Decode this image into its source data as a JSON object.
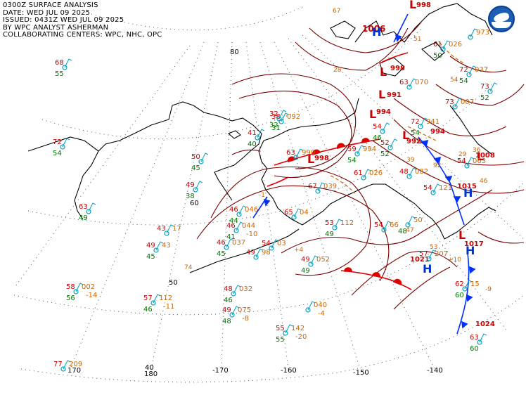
{
  "header": {
    "line1": "0300Z SURFACE ANALYSIS",
    "line2": "DATE: WED JUL 09 2025",
    "line3": "ISSUED: 0431Z WED JUL 09 2025",
    "line4": "BY WPC ANALYST ASHERMAN",
    "line5": "COLLABORATING CENTERS: WPC, NHC, OPC"
  },
  "logo": {
    "icon": "noaa-logo-icon"
  },
  "colors": {
    "isobar": "#7a0000",
    "coast": "#000000",
    "grid": "#555555",
    "warm_front": "#e00000",
    "cold_front": "#0030ff",
    "low": "#cc0000",
    "high": "#0033cc",
    "temperature": "#cc0000",
    "dewpoint": "#007700",
    "pressure": "#cc6600",
    "station": "#00a0c0",
    "trough": "#cc6600"
  },
  "grid_labels": {
    "lon": [
      "170",
      "180",
      "-170",
      "-160",
      "-150",
      "-140"
    ],
    "lat": [
      "80",
      "60",
      "50",
      "40"
    ]
  },
  "pressure_centers": [
    {
      "type": "L",
      "value": "1006"
    },
    {
      "type": "L",
      "value": "998"
    },
    {
      "type": "L",
      "value": "998"
    },
    {
      "type": "L",
      "value": "991"
    },
    {
      "type": "L",
      "value": "994"
    },
    {
      "type": "L",
      "value": "992"
    },
    {
      "type": "L",
      "value": "994"
    },
    {
      "type": "L",
      "value": "998"
    },
    {
      "type": "L",
      "value": "1008"
    },
    {
      "type": "L",
      "value": "1015"
    },
    {
      "type": "L",
      "value": "1017"
    },
    {
      "type": "H",
      "value": "1021"
    },
    {
      "type": "H",
      "value": "1024"
    }
  ],
  "stations": [
    {
      "t": "68",
      "d": "55"
    },
    {
      "t": "72",
      "d": "54"
    },
    {
      "t": "63",
      "d": "49"
    },
    {
      "t": "43",
      "d": "",
      "p": "17"
    },
    {
      "t": "49",
      "d": "45",
      "p": "43"
    },
    {
      "t": "58",
      "d": "56",
      "p": "002",
      "tend": "-14"
    },
    {
      "t": "57",
      "d": "46",
      "p": "112",
      "tend": "-11"
    },
    {
      "t": "77",
      "d": "",
      "p": "209"
    },
    {
      "t": "50",
      "d": "45"
    },
    {
      "t": "49",
      "d": "38"
    },
    {
      "t": "46",
      "d": "44",
      "p": "046"
    },
    {
      "t": "46",
      "d": "41",
      "p": "044",
      "tend": "-10"
    },
    {
      "t": "46",
      "d": "45",
      "p": "037"
    },
    {
      "t": "49",
      "d": "",
      "p": "98"
    },
    {
      "t": "54",
      "d": "",
      "p": "03"
    },
    {
      "t": "48",
      "d": "46",
      "p": "032"
    },
    {
      "t": "49",
      "d": "48",
      "p": "075",
      "tend": "-8"
    },
    {
      "t": "",
      "d": "",
      "p": "040",
      "tend": "-4"
    },
    {
      "t": "55",
      "d": "55",
      "p": "142",
      "tend": "-20"
    },
    {
      "t": "49",
      "d": "49",
      "p": "052"
    },
    {
      "t": "53",
      "d": "49",
      "p": "112"
    },
    {
      "t": "65",
      "d": "",
      "p": "04"
    },
    {
      "t": "67",
      "d": "",
      "p": "039"
    },
    {
      "t": "54",
      "d": "",
      "p": "66"
    },
    {
      "t": "",
      "d": "48",
      "p": "50"
    },
    {
      "t": "61",
      "d": "",
      "p": "026"
    },
    {
      "t": "59",
      "d": "54",
      "p": "994"
    },
    {
      "t": "63",
      "d": "",
      "p": "990"
    },
    {
      "t": "38",
      "d": "31",
      "p": "092"
    },
    {
      "t": "32",
      "d": "32"
    },
    {
      "t": "41",
      "d": "40"
    },
    {
      "t": "57",
      "d": "",
      "p": "207"
    },
    {
      "t": "62",
      "d": "60",
      "p": "15"
    },
    {
      "t": "63",
      "d": "60"
    },
    {
      "t": "54",
      "d": "",
      "p": "121"
    },
    {
      "t": "72",
      "d": "54",
      "p": "941"
    },
    {
      "t": "52",
      "d": "52"
    },
    {
      "t": "63",
      "d": "",
      "p": "070"
    },
    {
      "t": "61",
      "d": "50",
      "p": "026"
    },
    {
      "t": "72",
      "d": "54",
      "p": "037"
    },
    {
      "t": "73",
      "d": "",
      "p": "007"
    },
    {
      "t": "73",
      "d": "52"
    },
    {
      "t": "54",
      "d": "46"
    },
    {
      "t": "54",
      "d": "",
      "p": "063"
    },
    {
      "t": "48",
      "d": "",
      "p": "082"
    },
    {
      "t": "",
      "d": "",
      "p": "973"
    }
  ],
  "extra_labels": [
    "-9",
    "+10",
    "-47",
    "+4",
    "-1",
    "74",
    "54",
    "51",
    "28",
    "67",
    "39",
    "53",
    "36",
    "29",
    "92",
    "46"
  ]
}
